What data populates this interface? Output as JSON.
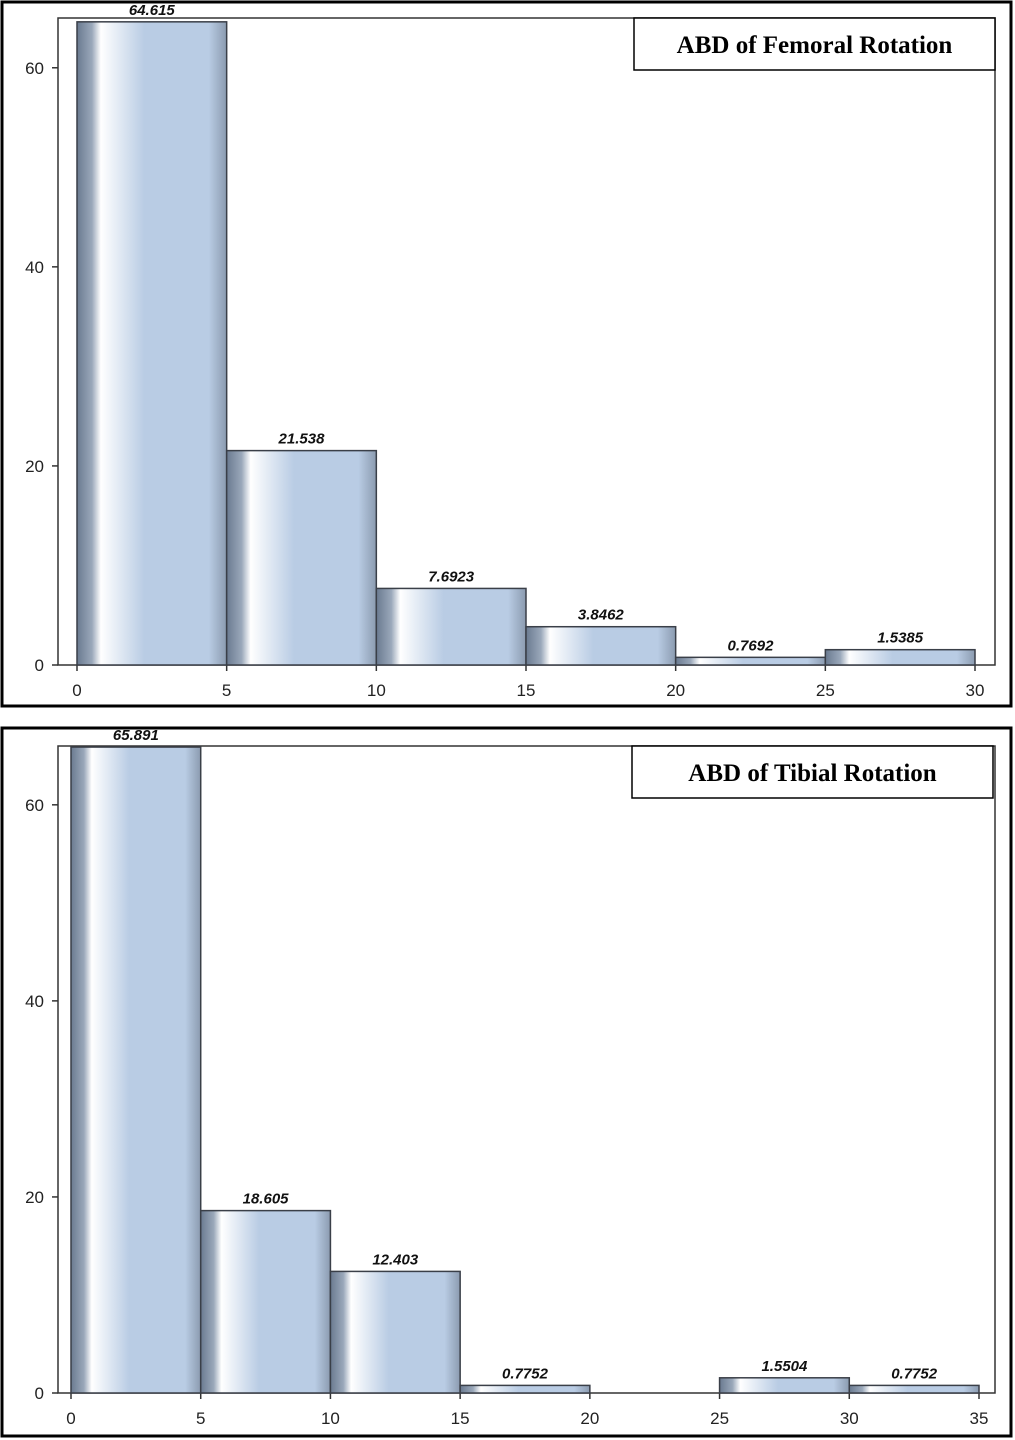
{
  "chart_data": [
    {
      "type": "bar",
      "title": "ABD of Femoral Rotation",
      "bin_edges": [
        0,
        5,
        10,
        15,
        20,
        25,
        30
      ],
      "values": [
        64.615,
        21.538,
        7.6923,
        3.8462,
        0.7692,
        1.5385
      ],
      "data_labels": [
        "64.615",
        "21.538",
        "7.6923",
        "3.8462",
        "0.7692",
        "1.5385"
      ],
      "x_ticks": [
        "0",
        "5",
        "10",
        "15",
        "20",
        "25",
        "30"
      ],
      "y_ticks": [
        "0",
        "20",
        "40",
        "60"
      ],
      "xlim": [
        0,
        30
      ],
      "ylim": [
        0,
        65
      ],
      "xlabel": "",
      "ylabel": "",
      "grid": false,
      "title_position": "top-right"
    },
    {
      "type": "bar",
      "title": "ABD of Tibial Rotation",
      "bin_edges": [
        0,
        5,
        10,
        15,
        20,
        25,
        30,
        35
      ],
      "values": [
        65.891,
        18.605,
        12.403,
        0.7752,
        0,
        1.5504,
        0.7752
      ],
      "data_labels": [
        "65.891",
        "18.605",
        "12.403",
        "0.7752",
        "",
        "1.5504",
        "0.7752"
      ],
      "x_ticks": [
        "0",
        "5",
        "10",
        "15",
        "20",
        "25",
        "30",
        "35"
      ],
      "y_ticks": [
        "0",
        "20",
        "40",
        "60"
      ],
      "xlim": [
        0,
        35
      ],
      "ylim": [
        0,
        66
      ],
      "xlabel": "",
      "ylabel": "",
      "grid": false,
      "title_position": "top-right"
    }
  ],
  "colors": {
    "bar_light": "#ffffff",
    "bar_mid": "#b9cce4",
    "bar_dark": "#6a7a90",
    "bar_outline": "#3a3f48",
    "axis": "#333333"
  }
}
